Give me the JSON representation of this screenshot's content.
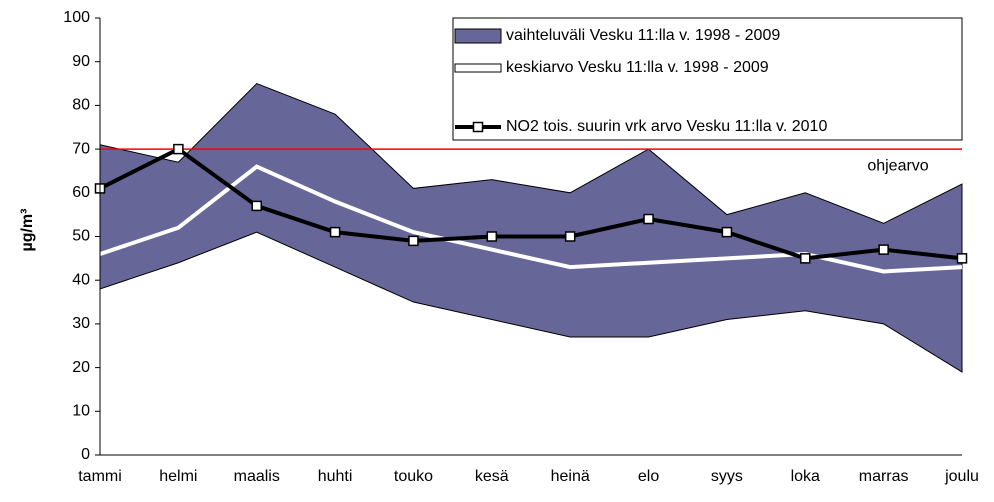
{
  "chart_data": {
    "type": "line",
    "y_label": "µg/m³",
    "categories": [
      "tammi",
      "helmi",
      "maalis",
      "huhti",
      "touko",
      "kesä",
      "heinä",
      "elo",
      "syys",
      "loka",
      "marras",
      "joulu"
    ],
    "series": [
      {
        "name": "vaihteluväli Vesku 11:lla v. 1998 - 2009",
        "color": "#666699",
        "upper": [
          71,
          67,
          85,
          78,
          61,
          63,
          60,
          70,
          55,
          60,
          53,
          62
        ],
        "lower": [
          38,
          44,
          51,
          43,
          35,
          31,
          27,
          27,
          31,
          33,
          30,
          19
        ]
      },
      {
        "name": "keskiarvo Vesku 11:lla v. 1998 - 2009",
        "color": "#ffffff",
        "values": [
          46,
          52,
          66,
          58,
          51,
          47,
          43,
          44,
          45,
          46,
          42,
          43
        ]
      },
      {
        "name": "NO2 tois. suurin vrk arvo Vesku 11:lla v. 2010",
        "color": "#000000",
        "marker": "square",
        "values": [
          61,
          70,
          57,
          51,
          49,
          50,
          50,
          54,
          51,
          45,
          47,
          45
        ]
      }
    ],
    "reference_line": {
      "value": 70,
      "label": "ohjearvo",
      "color": "#ff0000"
    },
    "ylim": [
      0,
      100
    ],
    "yticks": [
      0,
      10,
      20,
      30,
      40,
      50,
      60,
      70,
      80,
      90,
      100
    ]
  }
}
